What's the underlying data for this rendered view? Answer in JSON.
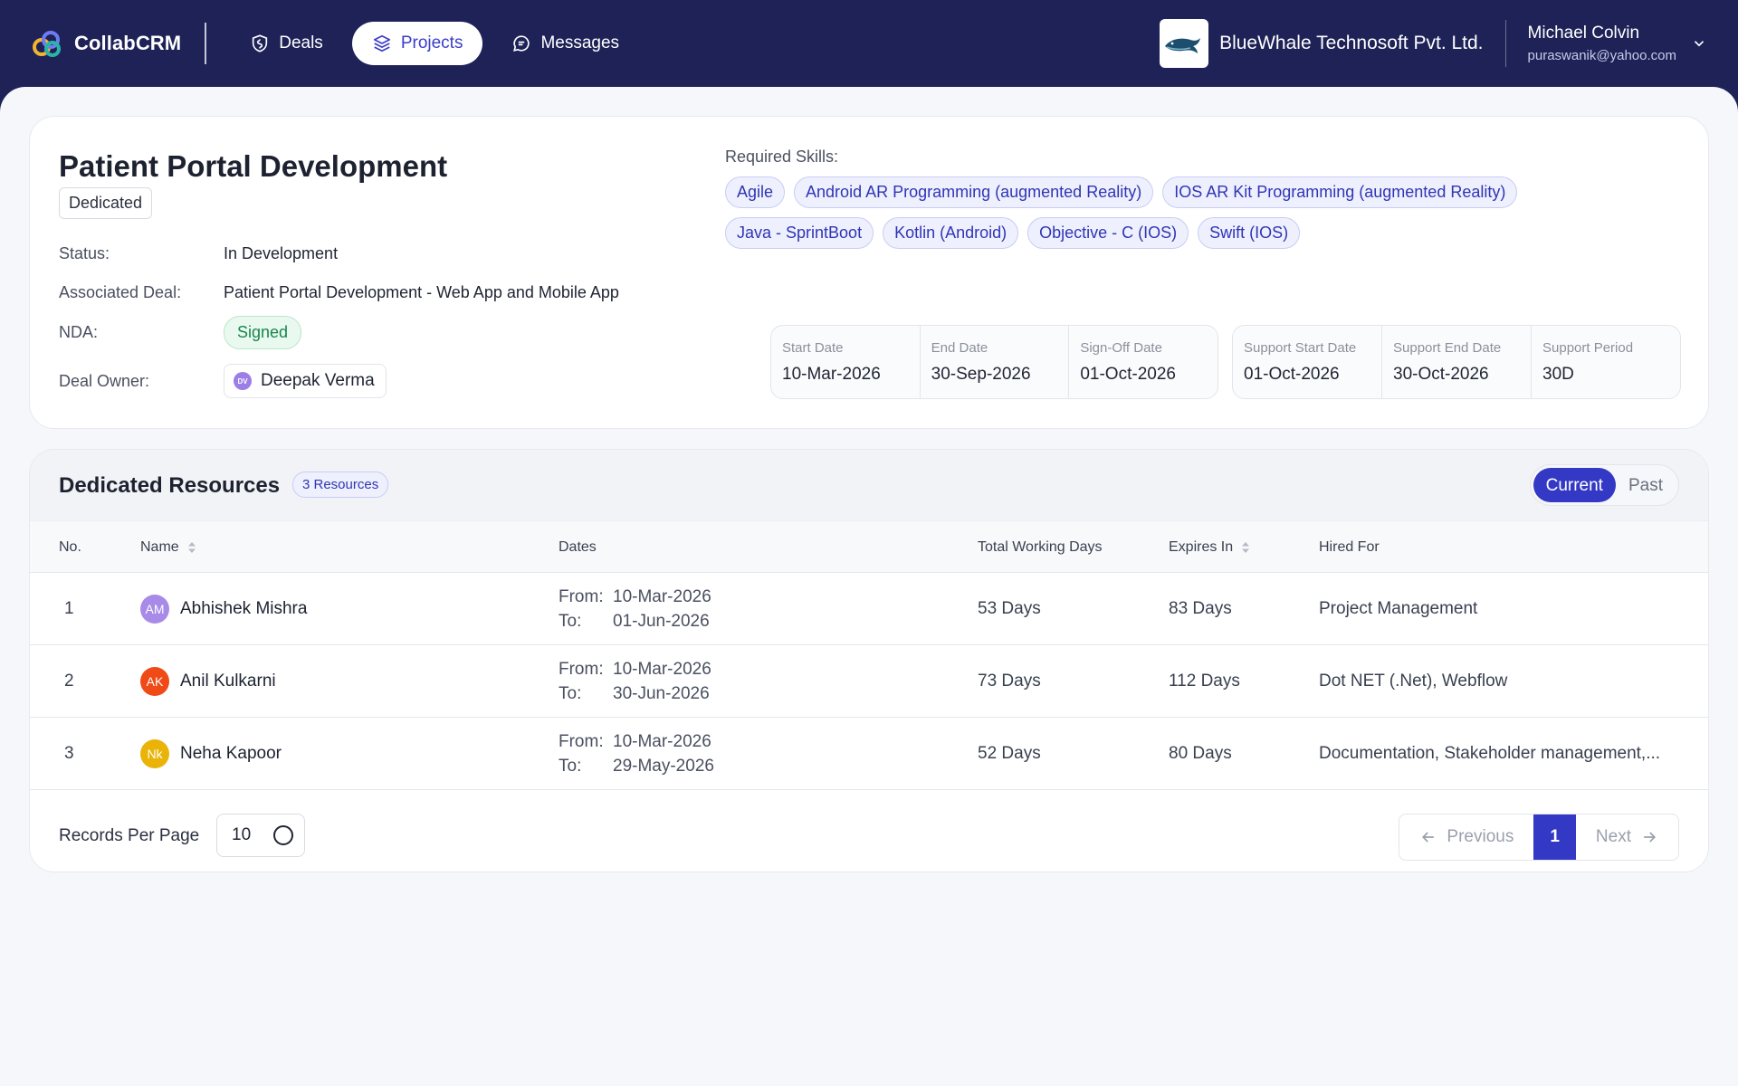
{
  "app": {
    "name": "CollabCRM"
  },
  "nav": {
    "items": [
      {
        "label": "Deals",
        "icon": "shield-icon"
      },
      {
        "label": "Projects",
        "icon": "layers-icon",
        "active": true
      },
      {
        "label": "Messages",
        "icon": "chat-icon"
      }
    ]
  },
  "company": {
    "name": "BlueWhale Technosoft Pvt. Ltd.",
    "logo": "whale-logo"
  },
  "user": {
    "name": "Michael Colvin",
    "email": "puraswanik@yahoo.com"
  },
  "project": {
    "title": "Patient Portal Development",
    "type": "Dedicated",
    "status_label": "Status:",
    "status": "In Development",
    "deal_label": "Associated Deal:",
    "deal": "Patient Portal Development - Web App and Mobile App",
    "nda_label": "NDA:",
    "nda": "Signed",
    "owner_label": "Deal Owner:",
    "owner_initials": "DV",
    "owner": "Deepak Verma",
    "skills_label": "Required Skills:",
    "skills": [
      "Agile",
      "Android AR Programming (augmented Reality)",
      "IOS AR Kit Programming (augmented Reality)",
      "Java - SprintBoot",
      "Kotlin (Android)",
      "Objective - C (IOS)",
      "Swift (IOS)"
    ],
    "dates": [
      {
        "label": "Start Date",
        "value": "10-Mar-2026"
      },
      {
        "label": "End Date",
        "value": "30-Sep-2026"
      },
      {
        "label": "Sign-Off Date",
        "value": "01-Oct-2026"
      }
    ],
    "support": [
      {
        "label": "Support Start Date",
        "value": "01-Oct-2026"
      },
      {
        "label": "Support End Date",
        "value": "30-Oct-2026"
      },
      {
        "label": "Support Period",
        "value": "30D"
      }
    ]
  },
  "resources": {
    "title": "Dedicated Resources",
    "count": "3 Resources",
    "toggle": {
      "current": "Current",
      "past": "Past"
    },
    "columns": {
      "no": "No.",
      "name": "Name",
      "dates": "Dates",
      "total": "Total Working Days",
      "expires": "Expires In",
      "hired": "Hired For"
    },
    "from_label": "From:",
    "to_label": "To:",
    "rows": [
      {
        "no": "1",
        "initials": "AM",
        "color": "#a88be8",
        "name": "Abhishek Mishra",
        "from": "10-Mar-2026",
        "to": "01-Jun-2026",
        "total": "53 Days",
        "expires": "83 Days",
        "hired": "Project Management"
      },
      {
        "no": "2",
        "initials": "AK",
        "color": "#f04a16",
        "name": "Anil Kulkarni",
        "from": "10-Mar-2026",
        "to": "30-Jun-2026",
        "total": "73 Days",
        "expires": "112 Days",
        "hired": "Dot NET (.Net), Webflow"
      },
      {
        "no": "3",
        "initials": "Nk",
        "color": "#eab308",
        "name": "Neha Kapoor",
        "from": "10-Mar-2026",
        "to": "29-May-2026",
        "total": "52 Days",
        "expires": "80 Days",
        "hired": "Documentation, Stakeholder management,..."
      }
    ],
    "records_label": "Records Per Page",
    "records_value": "10",
    "pager": {
      "prev": "Previous",
      "page": "1",
      "next": "Next"
    }
  },
  "colors": {
    "nav_bg": "#1e2257",
    "accent": "#3338c5",
    "success": "#18864a"
  }
}
